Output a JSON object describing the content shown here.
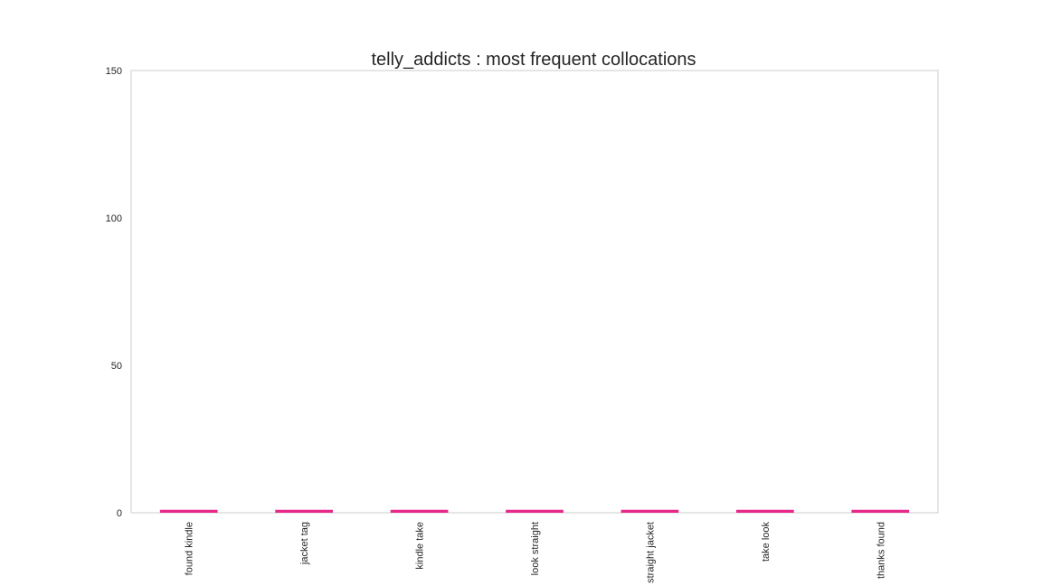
{
  "chart_data": {
    "type": "bar",
    "title": "telly_addicts : most frequent collocations",
    "xlabel": "",
    "ylabel": "",
    "categories": [
      "found kindle",
      "jacket tag",
      "kindle take",
      "look straight",
      "straight jacket",
      "take look",
      "thanks found"
    ],
    "values": [
      1,
      1,
      1,
      1,
      1,
      1,
      1
    ],
    "ylim": [
      0,
      150
    ],
    "yticks": [
      0,
      50,
      100,
      150
    ],
    "grid": false,
    "legend": "none",
    "bar_color": "#e7298a",
    "frame_color": "#cccccc"
  }
}
